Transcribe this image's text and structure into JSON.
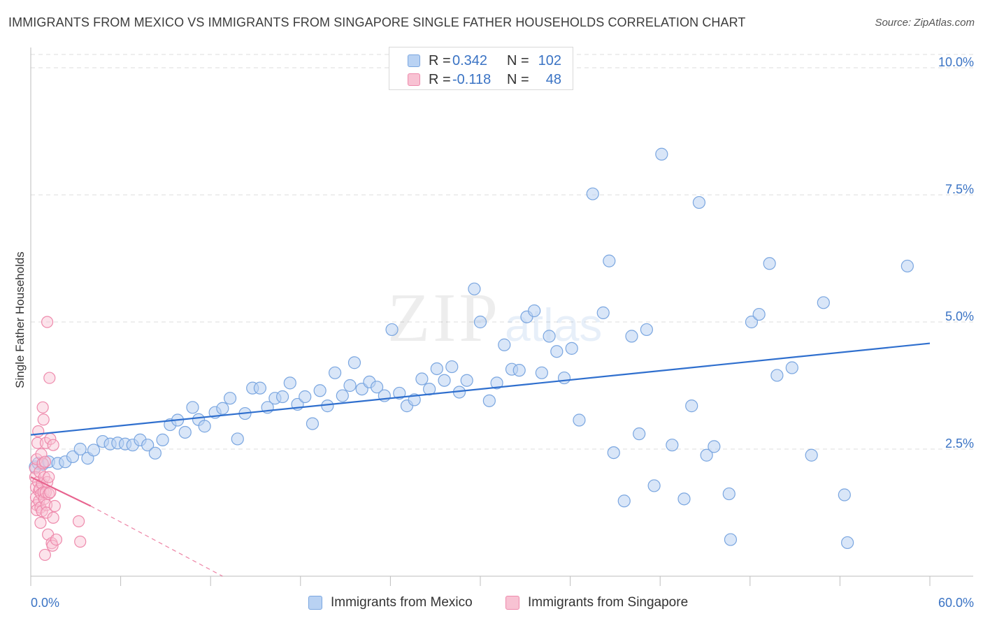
{
  "title": "IMMIGRANTS FROM MEXICO VS IMMIGRANTS FROM SINGAPORE SINGLE FATHER HOUSEHOLDS CORRELATION CHART",
  "source": "Source: ZipAtlas.com",
  "watermark": {
    "zip": "ZIP",
    "atlas": "atlas"
  },
  "legend": {
    "r_label": "R =",
    "n_label": "N =",
    "rows": [
      {
        "r": "0.342",
        "n": "102"
      },
      {
        "r": "-0.118",
        "n": "48"
      }
    ]
  },
  "colors": {
    "mexico_fill": "#b9d2f3",
    "mexico_stroke": "#7aa6e0",
    "mexico_line": "#2f6fce",
    "singapore_fill": "#f8c2d3",
    "singapore_stroke": "#ee8aac",
    "singapore_line": "#e8648f",
    "tick_label": "#3a73c4",
    "grid": "#dcdcdc"
  },
  "chart_data": {
    "type": "scatter",
    "title": "IMMIGRANTS FROM MEXICO VS IMMIGRANTS FROM SINGAPORE SINGLE FATHER HOUSEHOLDS CORRELATION CHART",
    "xlabel": "",
    "ylabel": "Single Father Households",
    "xlim": [
      0,
      60
    ],
    "ylim": [
      0,
      10.5
    ],
    "x_tick_labels": [
      "0.0%",
      "60.0%"
    ],
    "y_ticks": [
      2.5,
      5.0,
      7.5,
      10.0
    ],
    "y_tick_labels": [
      "2.5%",
      "5.0%",
      "7.5%",
      "10.0%"
    ],
    "grid": "horizontal dashed",
    "series": [
      {
        "name": "Immigrants from Mexico",
        "r": 0.342,
        "n": 102,
        "trend": [
          [
            0,
            2.78
          ],
          [
            60,
            4.58
          ]
        ],
        "points": [
          [
            0.3,
            2.15
          ],
          [
            0.5,
            2.22
          ],
          [
            0.8,
            2.2
          ],
          [
            1.2,
            2.25
          ],
          [
            1.8,
            2.22
          ],
          [
            2.3,
            2.25
          ],
          [
            2.8,
            2.35
          ],
          [
            3.3,
            2.5
          ],
          [
            3.8,
            2.32
          ],
          [
            4.2,
            2.48
          ],
          [
            4.8,
            2.65
          ],
          [
            5.3,
            2.6
          ],
          [
            5.8,
            2.62
          ],
          [
            6.3,
            2.6
          ],
          [
            6.8,
            2.58
          ],
          [
            7.3,
            2.68
          ],
          [
            7.8,
            2.58
          ],
          [
            8.3,
            2.42
          ],
          [
            8.8,
            2.68
          ],
          [
            9.3,
            2.98
          ],
          [
            9.8,
            3.07
          ],
          [
            10.3,
            2.83
          ],
          [
            10.8,
            3.32
          ],
          [
            11.2,
            3.08
          ],
          [
            11.6,
            2.95
          ],
          [
            12.3,
            3.22
          ],
          [
            12.8,
            3.3
          ],
          [
            13.3,
            3.5
          ],
          [
            13.8,
            2.7
          ],
          [
            14.3,
            3.2
          ],
          [
            14.8,
            3.7
          ],
          [
            15.3,
            3.7
          ],
          [
            15.8,
            3.32
          ],
          [
            16.3,
            3.5
          ],
          [
            16.8,
            3.53
          ],
          [
            17.3,
            3.8
          ],
          [
            17.8,
            3.38
          ],
          [
            18.3,
            3.53
          ],
          [
            18.8,
            3.0
          ],
          [
            19.3,
            3.65
          ],
          [
            19.8,
            3.35
          ],
          [
            20.3,
            4.0
          ],
          [
            20.8,
            3.55
          ],
          [
            21.3,
            3.75
          ],
          [
            21.6,
            4.2
          ],
          [
            22.1,
            3.68
          ],
          [
            22.6,
            3.82
          ],
          [
            23.1,
            3.72
          ],
          [
            23.6,
            3.55
          ],
          [
            24.1,
            4.85
          ],
          [
            24.6,
            3.6
          ],
          [
            25.1,
            3.35
          ],
          [
            25.6,
            3.47
          ],
          [
            26.1,
            3.88
          ],
          [
            26.6,
            3.68
          ],
          [
            27.1,
            4.08
          ],
          [
            27.6,
            3.85
          ],
          [
            28.1,
            4.12
          ],
          [
            28.6,
            3.62
          ],
          [
            29.1,
            3.85
          ],
          [
            29.6,
            5.65
          ],
          [
            30.0,
            5.0
          ],
          [
            30.6,
            3.45
          ],
          [
            31.1,
            3.8
          ],
          [
            31.6,
            4.55
          ],
          [
            32.1,
            4.07
          ],
          [
            32.6,
            4.05
          ],
          [
            33.1,
            5.1
          ],
          [
            33.6,
            5.22
          ],
          [
            34.1,
            4.0
          ],
          [
            34.6,
            4.72
          ],
          [
            35.1,
            4.42
          ],
          [
            35.6,
            3.9
          ],
          [
            36.1,
            4.48
          ],
          [
            36.6,
            3.07
          ],
          [
            37.5,
            7.52
          ],
          [
            38.2,
            5.18
          ],
          [
            38.6,
            6.2
          ],
          [
            38.9,
            2.43
          ],
          [
            39.6,
            1.48
          ],
          [
            40.1,
            4.72
          ],
          [
            40.6,
            2.8
          ],
          [
            41.1,
            4.85
          ],
          [
            41.6,
            1.78
          ],
          [
            42.1,
            8.3
          ],
          [
            42.8,
            2.58
          ],
          [
            43.6,
            1.52
          ],
          [
            44.1,
            3.35
          ],
          [
            44.6,
            7.35
          ],
          [
            45.1,
            2.38
          ],
          [
            45.6,
            2.55
          ],
          [
            46.6,
            1.62
          ],
          [
            46.7,
            0.72
          ],
          [
            48.1,
            5.0
          ],
          [
            48.6,
            5.15
          ],
          [
            49.3,
            6.15
          ],
          [
            49.8,
            3.95
          ],
          [
            50.8,
            4.1
          ],
          [
            52.1,
            2.38
          ],
          [
            52.9,
            5.38
          ],
          [
            54.3,
            1.6
          ],
          [
            54.5,
            0.66
          ],
          [
            58.5,
            6.1
          ]
        ]
      },
      {
        "name": "Immigrants from Singapore",
        "r": -0.118,
        "n": 48,
        "trend": [
          [
            0,
            1.95
          ],
          [
            4,
            1.38
          ]
        ],
        "trend_extended": [
          [
            4,
            1.38
          ],
          [
            12.8,
            0.0
          ]
        ],
        "points": [
          [
            0.3,
            2.12
          ],
          [
            0.3,
            1.95
          ],
          [
            0.35,
            1.75
          ],
          [
            0.35,
            1.55
          ],
          [
            0.4,
            1.4
          ],
          [
            0.4,
            1.3
          ],
          [
            0.4,
            2.3
          ],
          [
            0.45,
            2.62
          ],
          [
            0.5,
            2.85
          ],
          [
            0.5,
            1.85
          ],
          [
            0.55,
            1.68
          ],
          [
            0.55,
            1.48
          ],
          [
            0.6,
            2.05
          ],
          [
            0.6,
            1.72
          ],
          [
            0.65,
            1.35
          ],
          [
            0.65,
            1.05
          ],
          [
            0.7,
            2.4
          ],
          [
            0.7,
            1.62
          ],
          [
            0.75,
            1.82
          ],
          [
            0.75,
            1.28
          ],
          [
            0.8,
            3.32
          ],
          [
            0.8,
            2.22
          ],
          [
            0.85,
            3.08
          ],
          [
            0.85,
            1.65
          ],
          [
            0.9,
            1.95
          ],
          [
            0.9,
            1.52
          ],
          [
            0.95,
            2.25
          ],
          [
            0.95,
            0.42
          ],
          [
            1.0,
            2.62
          ],
          [
            1.0,
            1.65
          ],
          [
            1.05,
            1.4
          ],
          [
            1.05,
            1.25
          ],
          [
            1.1,
            5.0
          ],
          [
            1.1,
            1.85
          ],
          [
            1.15,
            0.82
          ],
          [
            1.2,
            1.62
          ],
          [
            1.2,
            1.95
          ],
          [
            1.25,
            3.9
          ],
          [
            1.3,
            2.7
          ],
          [
            1.3,
            1.65
          ],
          [
            1.4,
            0.65
          ],
          [
            1.45,
            0.6
          ],
          [
            1.5,
            2.58
          ],
          [
            1.5,
            1.15
          ],
          [
            1.6,
            1.38
          ],
          [
            1.7,
            0.72
          ],
          [
            3.2,
            1.08
          ],
          [
            3.3,
            0.68
          ]
        ]
      }
    ]
  }
}
